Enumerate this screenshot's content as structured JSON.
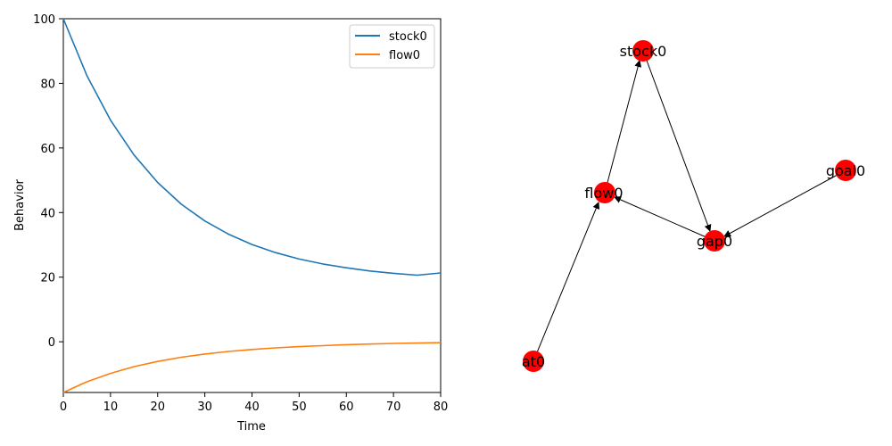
{
  "chart_data": [
    {
      "type": "line",
      "xlabel": "Time",
      "ylabel": "Behavior",
      "xlim": [
        0,
        80
      ],
      "ylim": [
        -15.7,
        100
      ],
      "xticks": [
        "0",
        "10",
        "20",
        "30",
        "40",
        "50",
        "60",
        "70",
        "80"
      ],
      "yticks": [
        "0",
        "20",
        "40",
        "60",
        "80",
        "100"
      ],
      "grid": false,
      "legend_position": "top-right",
      "series": [
        {
          "name": "stock0",
          "color": "#1f77b4",
          "x": [
            0,
            5,
            10,
            15,
            20,
            25,
            30,
            35,
            40,
            45,
            50,
            55,
            60,
            65,
            70,
            75,
            80
          ],
          "y": [
            100,
            82.4,
            68.6,
            57.8,
            49.3,
            42.6,
            37.4,
            33.3,
            30.1,
            27.6,
            25.6,
            24.1,
            22.9,
            21.9,
            21.2,
            20.6,
            21.3
          ]
        },
        {
          "name": "flow0",
          "color": "#ff7f0e",
          "x": [
            0,
            5,
            10,
            15,
            20,
            25,
            30,
            35,
            40,
            45,
            50,
            55,
            60,
            65,
            70,
            75,
            80
          ],
          "y": [
            -15.7,
            -12.4,
            -9.8,
            -7.7,
            -6.1,
            -4.8,
            -3.8,
            -3.0,
            -2.4,
            -1.9,
            -1.5,
            -1.2,
            -0.9,
            -0.7,
            -0.5,
            -0.4,
            -0.3
          ]
        }
      ]
    },
    {
      "type": "diagram",
      "node_color": "#ff0000",
      "nodes": [
        {
          "id": "stock0",
          "label": "stock0"
        },
        {
          "id": "flow0",
          "label": "flow0"
        },
        {
          "id": "goal0",
          "label": "goal0"
        },
        {
          "id": "gap0",
          "label": "gap0"
        },
        {
          "id": "at0",
          "label": "at0"
        }
      ],
      "edges": [
        {
          "from": "at0",
          "to": "flow0"
        },
        {
          "from": "flow0",
          "to": "stock0"
        },
        {
          "from": "stock0",
          "to": "gap0"
        },
        {
          "from": "gap0",
          "to": "flow0"
        },
        {
          "from": "goal0",
          "to": "gap0"
        }
      ]
    }
  ]
}
